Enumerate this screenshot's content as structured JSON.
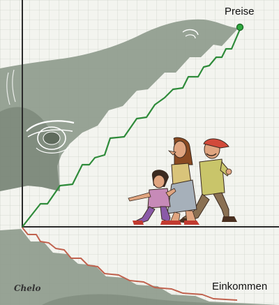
{
  "labels": {
    "prices": "Preise",
    "incomes": "Einkommen",
    "signature": "Chelo"
  },
  "colors": {
    "background": "#f3f4ef",
    "grid": "#cfd4cb",
    "shark_fill": "#8f9b8d",
    "shark_dark": "#6f7c6d",
    "axis": "#2a2a2a",
    "prices_line": "#2e8b3a",
    "prices_dot": "#2faa3f",
    "incomes_line": "#c0624e"
  },
  "icons": {
    "shark_top": "shark-silhouette",
    "shark_bottom": "shark-jaw-silhouette",
    "family": "walking-family-illustration"
  }
}
